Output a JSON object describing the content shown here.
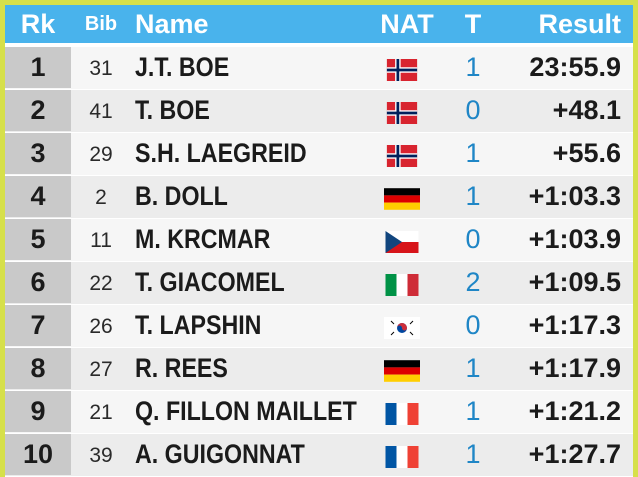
{
  "header": {
    "rank": "Rk",
    "bib": "Bib",
    "name": "Name",
    "nat": "NAT",
    "t": "T",
    "result": "Result"
  },
  "colors": {
    "header_bg": "#49b3ec",
    "frame": "#d6e04a",
    "t_value": "#1f86c6"
  },
  "rows": [
    {
      "rank": "1",
      "bib": "31",
      "name": "J.T. BOE",
      "flag": "norway-flag-icon",
      "t": "1",
      "result": "23:55.9"
    },
    {
      "rank": "2",
      "bib": "41",
      "name": "T. BOE",
      "flag": "norway-flag-icon",
      "t": "0",
      "result": "+48.1"
    },
    {
      "rank": "3",
      "bib": "29",
      "name": "S.H. LAEGREID",
      "flag": "norway-flag-icon",
      "t": "1",
      "result": "+55.6"
    },
    {
      "rank": "4",
      "bib": "2",
      "name": "B. DOLL",
      "flag": "germany-flag-icon",
      "t": "1",
      "result": "+1:03.3"
    },
    {
      "rank": "5",
      "bib": "11",
      "name": "M. KRCMAR",
      "flag": "czech-flag-icon",
      "t": "0",
      "result": "+1:03.9"
    },
    {
      "rank": "6",
      "bib": "22",
      "name": "T. GIACOMEL",
      "flag": "italy-flag-icon",
      "t": "2",
      "result": "+1:09.5"
    },
    {
      "rank": "7",
      "bib": "26",
      "name": "T. LAPSHIN",
      "flag": "south-korea-flag-icon",
      "t": "0",
      "result": "+1:17.3"
    },
    {
      "rank": "8",
      "bib": "27",
      "name": "R. REES",
      "flag": "germany-flag-icon",
      "t": "1",
      "result": "+1:17.9"
    },
    {
      "rank": "9",
      "bib": "21",
      "name": "Q. FILLON MAILLET",
      "flag": "france-flag-icon",
      "t": "1",
      "result": "+1:21.2"
    },
    {
      "rank": "10",
      "bib": "39",
      "name": "A. GUIGONNAT",
      "flag": "france-flag-icon",
      "t": "1",
      "result": "+1:27.7"
    }
  ]
}
